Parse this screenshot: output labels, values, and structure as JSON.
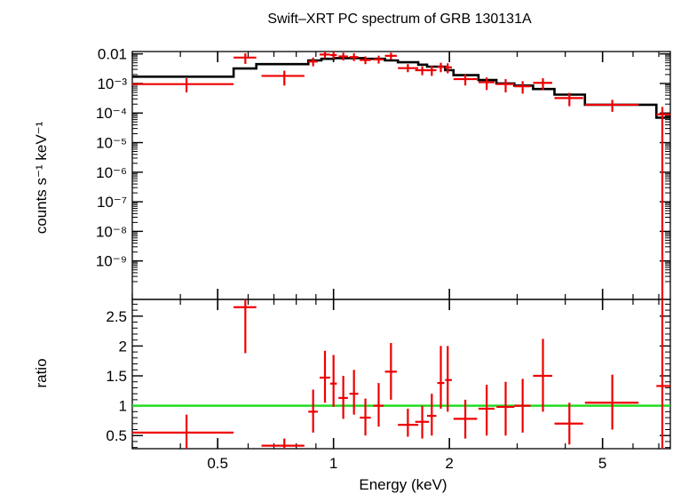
{
  "chart_data": [
    {
      "type": "scatter",
      "panel": "spectrum",
      "title": "Swift–XRT PC spectrum of GRB 130131A",
      "ylabel": "counts s⁻¹ keV⁻¹",
      "xlabel": "",
      "xscale": "log",
      "yscale": "log",
      "xlim": [
        0.3,
        7.5
      ],
      "ylim": [
        5e-11,
        0.012
      ],
      "y_tick_labels": [
        {
          "v": 0.01,
          "label": "0.01"
        },
        {
          "v": 0.001,
          "label": "10⁻³"
        },
        {
          "v": 0.0001,
          "label": "10⁻⁴"
        },
        {
          "v": 1e-05,
          "label": "10⁻⁵"
        },
        {
          "v": 1e-06,
          "label": "10⁻⁶"
        },
        {
          "v": 1e-07,
          "label": "10⁻⁷"
        },
        {
          "v": 1e-08,
          "label": "10⁻⁸"
        },
        {
          "v": 1e-09,
          "label": "10⁻⁹"
        }
      ],
      "colors": {
        "data": "#ee0000",
        "model": "#000000"
      },
      "series": [
        {
          "kind": "data",
          "points": [
            {
              "x": 0.415,
              "x_lo": 0.3,
              "x_hi": 0.55,
              "y": 0.00095,
              "y_lo": 0.0005,
              "y_hi": 0.0015
            },
            {
              "x": 0.59,
              "x_lo": 0.55,
              "x_hi": 0.63,
              "y": 0.0075,
              "y_lo": 0.0046,
              "y_hi": 0.0105
            },
            {
              "x": 0.745,
              "x_lo": 0.65,
              "x_hi": 0.84,
              "y": 0.0018,
              "y_lo": 0.00085,
              "y_hi": 0.0027
            },
            {
              "x": 0.885,
              "x_lo": 0.86,
              "x_hi": 0.91,
              "y": 0.0055,
              "y_lo": 0.0038,
              "y_hi": 0.0075
            },
            {
              "x": 0.95,
              "x_lo": 0.92,
              "x_hi": 0.98,
              "y": 0.0095,
              "y_lo": 0.0072,
              "y_hi": 0.012
            },
            {
              "x": 1.0,
              "x_lo": 0.98,
              "x_hi": 1.02,
              "y": 0.0091,
              "y_lo": 0.0068,
              "y_hi": 0.012
            },
            {
              "x": 1.06,
              "x_lo": 1.03,
              "x_hi": 1.09,
              "y": 0.0082,
              "y_lo": 0.006,
              "y_hi": 0.011
            },
            {
              "x": 1.13,
              "x_lo": 1.1,
              "x_hi": 1.16,
              "y": 0.0078,
              "y_lo": 0.0057,
              "y_hi": 0.0105
            },
            {
              "x": 1.21,
              "x_lo": 1.17,
              "x_hi": 1.25,
              "y": 0.0062,
              "y_lo": 0.0045,
              "y_hi": 0.0082
            },
            {
              "x": 1.31,
              "x_lo": 1.27,
              "x_hi": 1.35,
              "y": 0.0065,
              "y_lo": 0.0047,
              "y_hi": 0.0087
            },
            {
              "x": 1.41,
              "x_lo": 1.36,
              "x_hi": 1.46,
              "y": 0.0086,
              "y_lo": 0.0065,
              "y_hi": 0.011
            },
            {
              "x": 1.56,
              "x_lo": 1.47,
              "x_hi": 1.66,
              "y": 0.0033,
              "y_lo": 0.0024,
              "y_hi": 0.0045
            },
            {
              "x": 1.7,
              "x_lo": 1.63,
              "x_hi": 1.77,
              "y": 0.0028,
              "y_lo": 0.0019,
              "y_hi": 0.0038
            },
            {
              "x": 1.8,
              "x_lo": 1.75,
              "x_hi": 1.85,
              "y": 0.0028,
              "y_lo": 0.0018,
              "y_hi": 0.004
            },
            {
              "x": 1.9,
              "x_lo": 1.86,
              "x_hi": 1.94,
              "y": 0.0036,
              "y_lo": 0.0024,
              "y_hi": 0.005
            },
            {
              "x": 1.98,
              "x_lo": 1.95,
              "x_hi": 2.03,
              "y": 0.0035,
              "y_lo": 0.0022,
              "y_hi": 0.0048
            },
            {
              "x": 2.2,
              "x_lo": 2.05,
              "x_hi": 2.36,
              "y": 0.0014,
              "y_lo": 0.00085,
              "y_hi": 0.002
            },
            {
              "x": 2.5,
              "x_lo": 2.38,
              "x_hi": 2.62,
              "y": 0.0011,
              "y_lo": 0.0006,
              "y_hi": 0.0016
            },
            {
              "x": 2.8,
              "x_lo": 2.65,
              "x_hi": 2.95,
              "y": 0.00095,
              "y_lo": 0.0005,
              "y_hi": 0.0014
            },
            {
              "x": 3.1,
              "x_lo": 2.95,
              "x_hi": 3.25,
              "y": 0.0008,
              "y_lo": 0.00045,
              "y_hi": 0.0012
            },
            {
              "x": 3.5,
              "x_lo": 3.3,
              "x_hi": 3.7,
              "y": 0.00105,
              "y_lo": 0.0006,
              "y_hi": 0.0015
            },
            {
              "x": 4.1,
              "x_lo": 3.75,
              "x_hi": 4.45,
              "y": 0.00032,
              "y_lo": 0.00017,
              "y_hi": 0.00048
            },
            {
              "x": 5.3,
              "x_lo": 4.5,
              "x_hi": 6.2,
              "y": 0.00019,
              "y_lo": 0.00011,
              "y_hi": 0.00028
            },
            {
              "x": 7.15,
              "x_lo": 6.9,
              "x_hi": 7.5,
              "y": 9e-05,
              "y_lo": 5e-11,
              "y_hi": 0.00016
            }
          ]
        },
        {
          "kind": "model",
          "steps": [
            {
              "x0": 0.3,
              "x1": 0.55,
              "y": 0.0017
            },
            {
              "x0": 0.55,
              "x1": 0.63,
              "y": 0.0032
            },
            {
              "x0": 0.63,
              "x1": 0.86,
              "y": 0.0045
            },
            {
              "x0": 0.86,
              "x1": 0.93,
              "y": 0.006
            },
            {
              "x0": 0.93,
              "x1": 1.0,
              "y": 0.0068
            },
            {
              "x0": 1.0,
              "x1": 1.2,
              "y": 0.0072
            },
            {
              "x0": 1.2,
              "x1": 1.36,
              "y": 0.0068
            },
            {
              "x0": 1.36,
              "x1": 1.47,
              "y": 0.006
            },
            {
              "x0": 1.47,
              "x1": 1.66,
              "y": 0.0052
            },
            {
              "x0": 1.66,
              "x1": 1.75,
              "y": 0.0043
            },
            {
              "x0": 1.75,
              "x1": 1.95,
              "y": 0.0037
            },
            {
              "x0": 1.95,
              "x1": 2.05,
              "y": 0.0028
            },
            {
              "x0": 2.05,
              "x1": 2.38,
              "y": 0.0019
            },
            {
              "x0": 2.38,
              "x1": 2.65,
              "y": 0.0013
            },
            {
              "x0": 2.65,
              "x1": 2.95,
              "y": 0.001
            },
            {
              "x0": 2.95,
              "x1": 3.3,
              "y": 0.00085
            },
            {
              "x0": 3.3,
              "x1": 3.75,
              "y": 0.00065
            },
            {
              "x0": 3.75,
              "x1": 4.5,
              "y": 0.00042
            },
            {
              "x0": 4.5,
              "x1": 6.9,
              "y": 0.00019
            },
            {
              "x0": 6.9,
              "x1": 7.5,
              "y": 7e-05
            }
          ]
        }
      ]
    },
    {
      "type": "scatter",
      "panel": "ratio",
      "xlabel": "Energy (keV)",
      "ylabel": "ratio",
      "xscale": "log",
      "xlim": [
        0.3,
        7.5
      ],
      "ylim": [
        0.28,
        2.78
      ],
      "x_tick_labels": [
        {
          "v": 0.5,
          "label": "0.5"
        },
        {
          "v": 1,
          "label": "1"
        },
        {
          "v": 2,
          "label": "2"
        },
        {
          "v": 5,
          "label": "5"
        }
      ],
      "y_tick_labels": [
        {
          "v": 0.5,
          "label": "0.5"
        },
        {
          "v": 1,
          "label": "1"
        },
        {
          "v": 1.5,
          "label": "1.5"
        },
        {
          "v": 2,
          "label": "2"
        },
        {
          "v": 2.5,
          "label": "2.5"
        }
      ],
      "reference_line": 1,
      "colors": {
        "data": "#ee0000",
        "reference": "#22dd22"
      },
      "points": [
        {
          "x": 0.415,
          "x_lo": 0.3,
          "x_hi": 0.55,
          "y": 0.55,
          "y_lo": 0.28,
          "y_hi": 0.85
        },
        {
          "x": 0.59,
          "x_lo": 0.55,
          "x_hi": 0.63,
          "y": 2.65,
          "y_lo": 1.88,
          "y_hi": 2.78
        },
        {
          "x": 0.745,
          "x_lo": 0.65,
          "x_hi": 0.84,
          "y": 0.33,
          "y_lo": 0.28,
          "y_hi": 0.45
        },
        {
          "x": 0.885,
          "x_lo": 0.86,
          "x_hi": 0.91,
          "y": 0.9,
          "y_lo": 0.55,
          "y_hi": 1.27
        },
        {
          "x": 0.95,
          "x_lo": 0.92,
          "x_hi": 0.98,
          "y": 1.47,
          "y_lo": 1.05,
          "y_hi": 1.92
        },
        {
          "x": 1.0,
          "x_lo": 0.98,
          "x_hi": 1.02,
          "y": 1.37,
          "y_lo": 0.98,
          "y_hi": 1.85
        },
        {
          "x": 1.06,
          "x_lo": 1.03,
          "x_hi": 1.09,
          "y": 1.13,
          "y_lo": 0.78,
          "y_hi": 1.5
        },
        {
          "x": 1.13,
          "x_lo": 1.1,
          "x_hi": 1.16,
          "y": 1.2,
          "y_lo": 0.85,
          "y_hi": 1.6
        },
        {
          "x": 1.21,
          "x_lo": 1.17,
          "x_hi": 1.25,
          "y": 0.8,
          "y_lo": 0.5,
          "y_hi": 1.12
        },
        {
          "x": 1.31,
          "x_lo": 1.27,
          "x_hi": 1.35,
          "y": 1.0,
          "y_lo": 0.65,
          "y_hi": 1.38
        },
        {
          "x": 1.41,
          "x_lo": 1.36,
          "x_hi": 1.46,
          "y": 1.57,
          "y_lo": 1.1,
          "y_hi": 2.05
        },
        {
          "x": 1.56,
          "x_lo": 1.47,
          "x_hi": 1.66,
          "y": 0.68,
          "y_lo": 0.48,
          "y_hi": 0.95
        },
        {
          "x": 1.7,
          "x_lo": 1.63,
          "x_hi": 1.77,
          "y": 0.73,
          "y_lo": 0.45,
          "y_hi": 1.0
        },
        {
          "x": 1.8,
          "x_lo": 1.75,
          "x_hi": 1.85,
          "y": 0.83,
          "y_lo": 0.5,
          "y_hi": 1.2
        },
        {
          "x": 1.9,
          "x_lo": 1.86,
          "x_hi": 1.94,
          "y": 1.38,
          "y_lo": 0.95,
          "y_hi": 2.0
        },
        {
          "x": 1.98,
          "x_lo": 1.95,
          "x_hi": 2.03,
          "y": 1.43,
          "y_lo": 0.9,
          "y_hi": 2.0
        },
        {
          "x": 2.2,
          "x_lo": 2.05,
          "x_hi": 2.36,
          "y": 0.78,
          "y_lo": 0.45,
          "y_hi": 1.1
        },
        {
          "x": 2.5,
          "x_lo": 2.38,
          "x_hi": 2.62,
          "y": 0.95,
          "y_lo": 0.5,
          "y_hi": 1.35
        },
        {
          "x": 2.8,
          "x_lo": 2.65,
          "x_hi": 2.95,
          "y": 0.98,
          "y_lo": 0.5,
          "y_hi": 1.4
        },
        {
          "x": 3.1,
          "x_lo": 2.95,
          "x_hi": 3.25,
          "y": 1.0,
          "y_lo": 0.55,
          "y_hi": 1.45
        },
        {
          "x": 3.5,
          "x_lo": 3.3,
          "x_hi": 3.7,
          "y": 1.5,
          "y_lo": 0.9,
          "y_hi": 2.12
        },
        {
          "x": 4.1,
          "x_lo": 3.75,
          "x_hi": 4.45,
          "y": 0.7,
          "y_lo": 0.35,
          "y_hi": 1.05
        },
        {
          "x": 5.3,
          "x_lo": 4.5,
          "x_hi": 6.2,
          "y": 1.05,
          "y_lo": 0.6,
          "y_hi": 1.52
        },
        {
          "x": 7.15,
          "x_lo": 6.9,
          "x_hi": 7.5,
          "y": 1.33,
          "y_lo": 0.28,
          "y_hi": 2.78
        }
      ]
    }
  ]
}
